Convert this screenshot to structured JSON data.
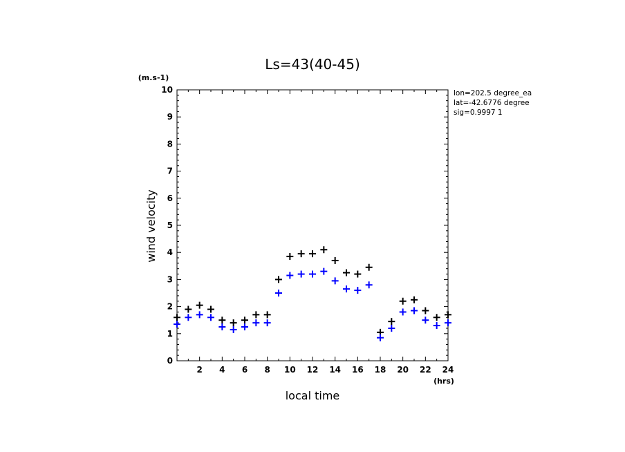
{
  "chart_data": {
    "type": "scatter",
    "title": "Ls=43(40-45)",
    "xlabel": "local time",
    "ylabel": "wind velocity",
    "x_unit": "(hrs)",
    "y_unit": "(m.s-1)",
    "xlim": [
      0,
      24
    ],
    "ylim": [
      0,
      10
    ],
    "x_ticks": [
      2,
      4,
      6,
      8,
      10,
      12,
      14,
      16,
      18,
      20,
      22,
      24
    ],
    "y_ticks": [
      0,
      1,
      2,
      3,
      4,
      5,
      6,
      7,
      8,
      9,
      10
    ],
    "grid": false,
    "marker": "+",
    "annotations": [
      "lon=202.5 degree_ea",
      "lat=-42.6776 degree",
      "sig=0.9997 1"
    ],
    "series": [
      {
        "color": "#000000",
        "x": [
          0,
          1,
          2,
          3,
          4,
          5,
          6,
          7,
          8,
          9,
          10,
          11,
          12,
          13,
          14,
          15,
          16,
          17,
          18,
          19,
          20,
          21,
          22,
          23,
          24
        ],
        "values": [
          1.6,
          1.9,
          2.05,
          1.9,
          1.5,
          1.4,
          1.5,
          1.7,
          1.7,
          3.0,
          3.85,
          3.95,
          3.95,
          4.1,
          3.7,
          3.25,
          3.2,
          3.45,
          1.05,
          1.45,
          2.2,
          2.25,
          1.85,
          1.6,
          1.7
        ]
      },
      {
        "color": "#0000ff",
        "x": [
          0,
          1,
          2,
          3,
          4,
          5,
          6,
          7,
          8,
          9,
          10,
          11,
          12,
          13,
          14,
          15,
          16,
          17,
          18,
          19,
          20,
          21,
          22,
          23,
          24
        ],
        "values": [
          1.35,
          1.6,
          1.7,
          1.6,
          1.25,
          1.15,
          1.25,
          1.4,
          1.4,
          2.5,
          3.15,
          3.2,
          3.2,
          3.3,
          2.95,
          2.65,
          2.6,
          2.8,
          0.85,
          1.2,
          1.8,
          1.85,
          1.5,
          1.3,
          1.4
        ]
      }
    ]
  }
}
